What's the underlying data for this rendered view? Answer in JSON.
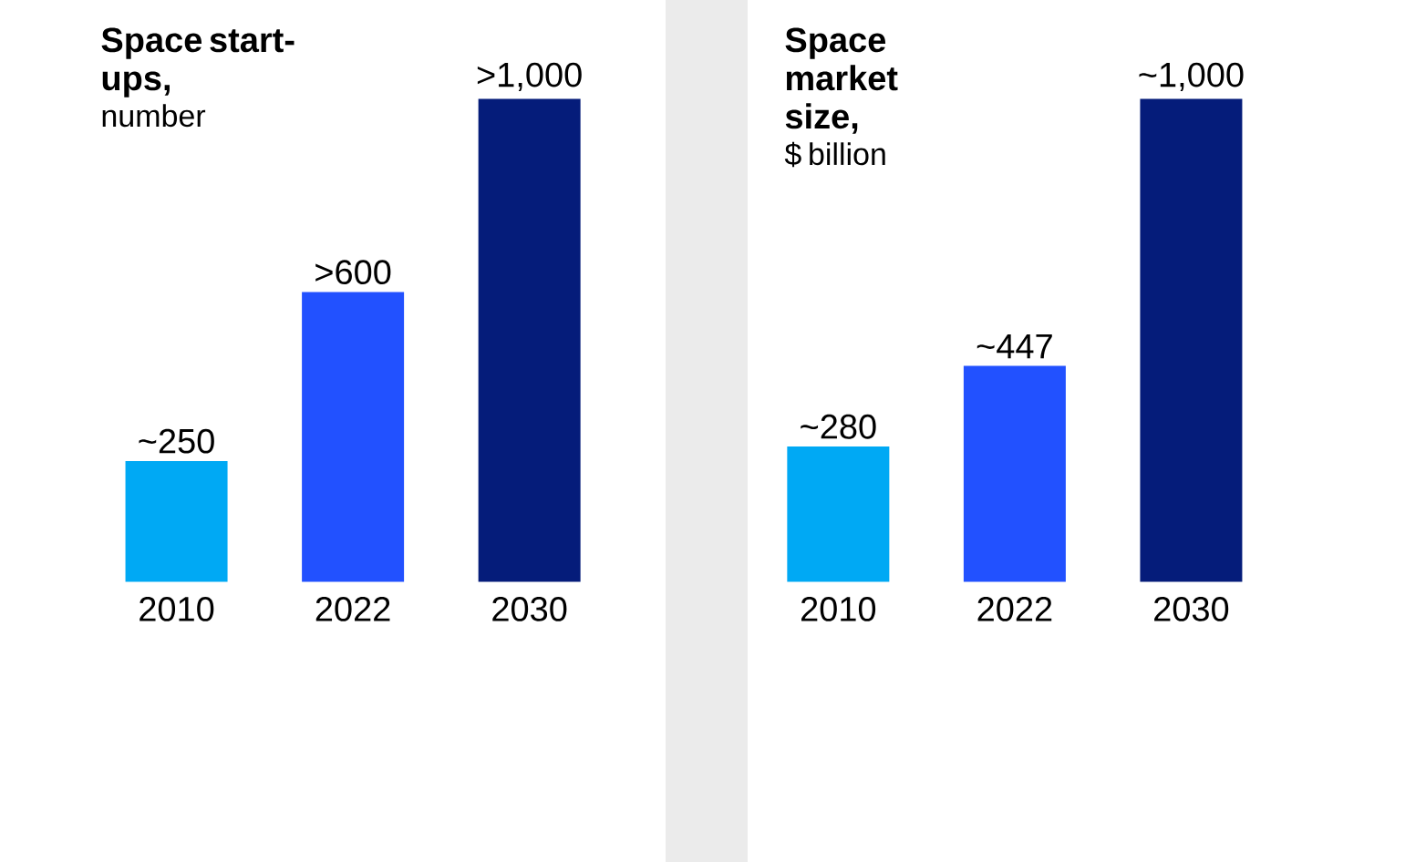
{
  "chart_data": [
    {
      "type": "bar",
      "title": "Space start-ups,",
      "subtitle": "number",
      "categories": [
        "2010",
        "2022",
        "2030"
      ],
      "values": [
        250,
        600,
        1000
      ],
      "value_labels": [
        "~250",
        ">600",
        ">1,000"
      ],
      "colors": [
        "#00a9f4",
        "#2251ff",
        "#051c7a"
      ]
    },
    {
      "type": "bar",
      "title": "Space market size,",
      "subtitle": "$ billion",
      "categories": [
        "2010",
        "2022",
        "2030"
      ],
      "values": [
        280,
        447,
        1000
      ],
      "value_labels": [
        "~280",
        "~447",
        "~1,000"
      ],
      "colors": [
        "#00a9f4",
        "#2251ff",
        "#051c7a"
      ]
    }
  ]
}
